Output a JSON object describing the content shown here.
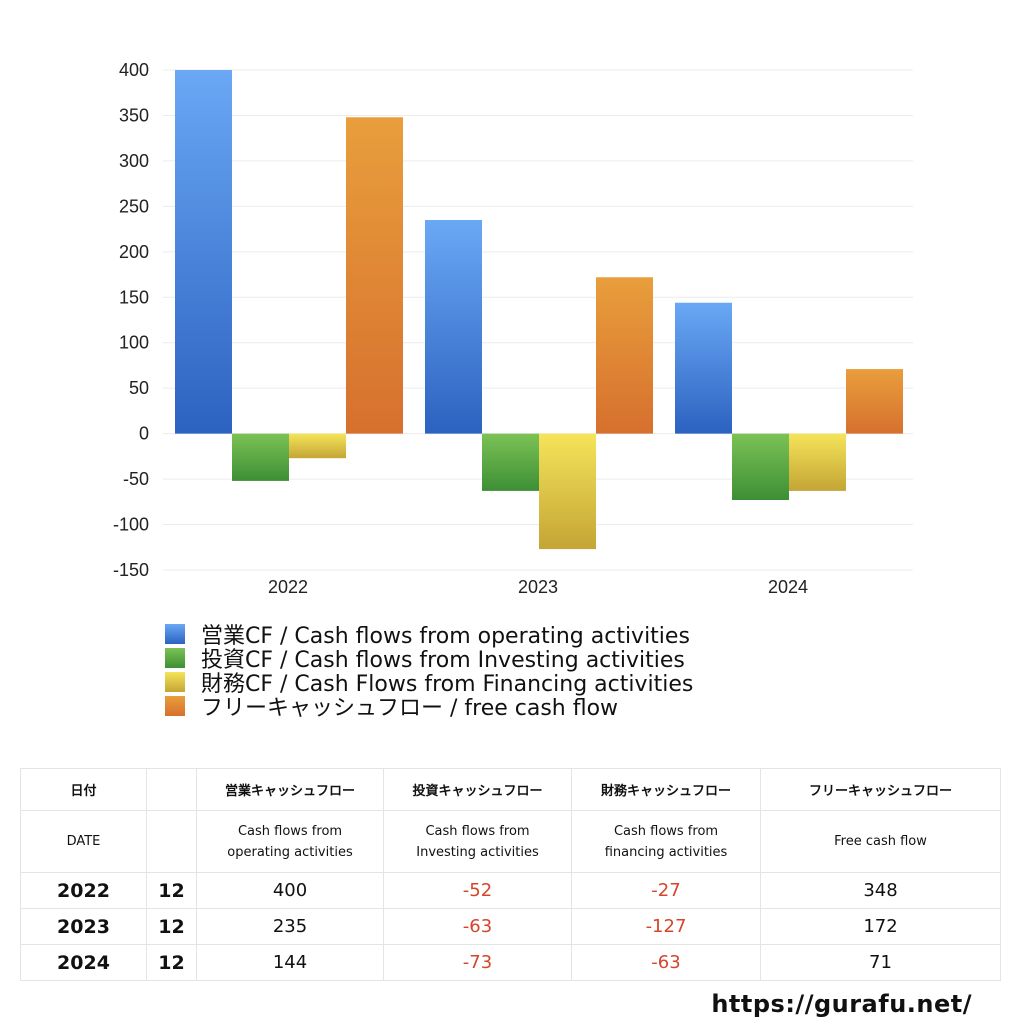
{
  "chart_data": {
    "type": "bar",
    "categories": [
      "2022",
      "2023",
      "2024"
    ],
    "series": [
      {
        "name": "営業CF / Cash flows from operating activities",
        "values": [
          400,
          235,
          144
        ]
      },
      {
        "name": "投資CF / Cash flows from Investing activities",
        "values": [
          -52,
          -63,
          -73
        ]
      },
      {
        "name": "財務CF / Cash Flows from Financing activities",
        "values": [
          -27,
          -127,
          -63
        ]
      },
      {
        "name": "フリーキャッシュフロー / free cash flow",
        "values": [
          348,
          172,
          71
        ]
      }
    ],
    "ylim": [
      -150,
      400
    ],
    "yticks": [
      "400",
      "350",
      "300",
      "250",
      "200",
      "150",
      "100",
      "50",
      "0",
      "-50",
      "-100",
      "-150"
    ],
    "grid": true,
    "legend_position": "bottom-left"
  },
  "colors": {
    "operating": [
      "#6aa8f5",
      "#2c62c0"
    ],
    "investing": [
      "#7cc255",
      "#3d8f35"
    ],
    "financing": [
      "#f5e45a",
      "#c4a535"
    ],
    "free": [
      "#e99e3c",
      "#d6702e"
    ],
    "negative_text": "#d6452b"
  },
  "table": {
    "headers": {
      "date_jp": "日付",
      "operating_jp": "営業キャッシュフロー",
      "investing_jp": "投資キャッシュフロー",
      "financing_jp": "財務キャッシュフロー",
      "free_jp": "フリーキャッシュフロー"
    },
    "subheaders": {
      "date_en": "DATE",
      "operating_en_1": "Cash flows from",
      "operating_en_2": "operating activities",
      "investing_en_1": "Cash flows from",
      "investing_en_2": "Investing activities",
      "financing_en_1": "Cash flows from",
      "financing_en_2": "financing activities",
      "free_en": "Free cash flow"
    },
    "rows": [
      {
        "year": "2022",
        "month": "12",
        "operating": "400",
        "investing": "-52",
        "financing": "-27",
        "free": "348"
      },
      {
        "year": "2023",
        "month": "12",
        "operating": "235",
        "investing": "-63",
        "financing": "-127",
        "free": "172"
      },
      {
        "year": "2024",
        "month": "12",
        "operating": "144",
        "investing": "-73",
        "financing": "-63",
        "free": "71"
      }
    ]
  },
  "site_url": "https://gurafu.net/"
}
